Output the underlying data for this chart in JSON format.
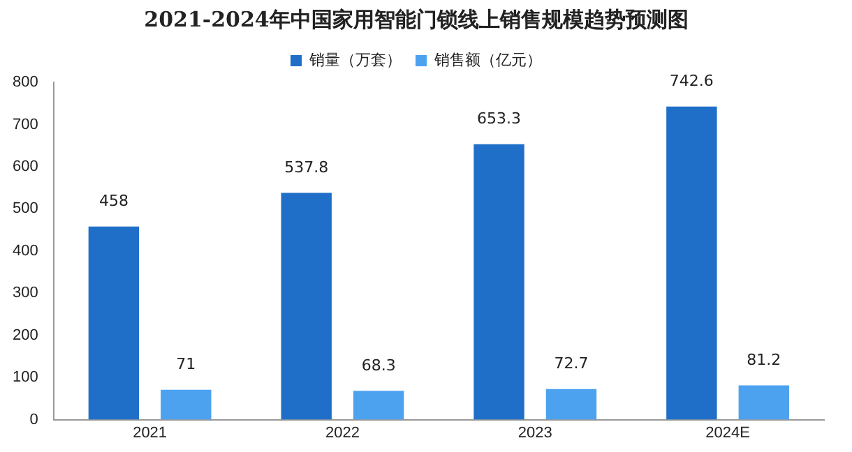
{
  "chart_data": {
    "type": "bar",
    "title": "2021-2024年中国家用智能门锁线上销售规模趋势预测图",
    "categories": [
      "2021",
      "2022",
      "2023",
      "2024E"
    ],
    "series": [
      {
        "name": "销量（万套）",
        "color": "#1f6fc8",
        "values": [
          458,
          537.8,
          653.3,
          742.6
        ]
      },
      {
        "name": "销售额（亿元）",
        "color": "#4da2f0",
        "values": [
          71,
          68.3,
          72.7,
          81.2
        ]
      }
    ],
    "ylim": [
      0,
      800
    ],
    "yticks": [
      0,
      100,
      200,
      300,
      400,
      500,
      600,
      700,
      800
    ],
    "grid": false,
    "legend": "top",
    "data_labels": true
  }
}
